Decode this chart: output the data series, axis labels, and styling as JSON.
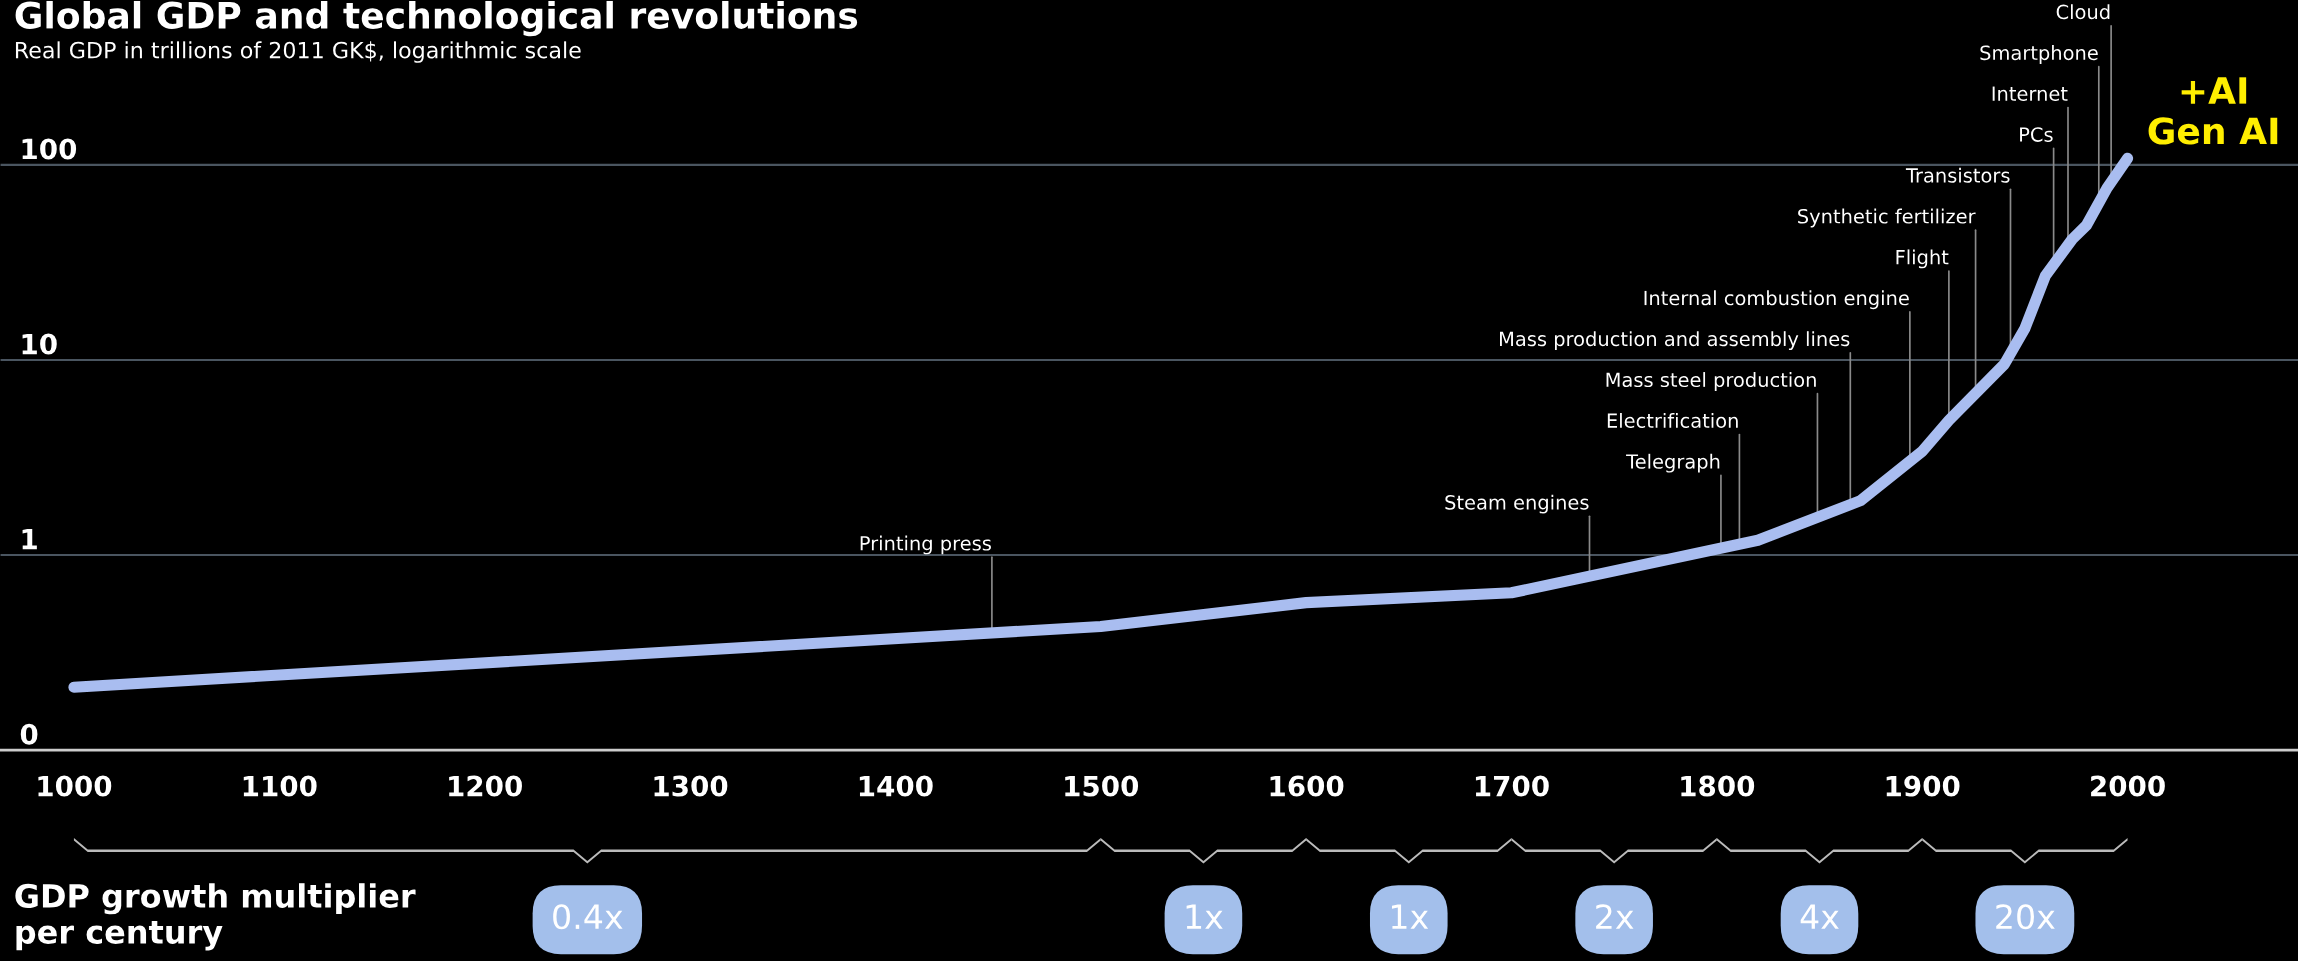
{
  "chart_data": {
    "type": "line",
    "title": "Global GDP and technological revolutions",
    "subtitle": "Real GDP in trillions of 2011 GK$, logarithmic scale",
    "x": [
      1000,
      1500,
      1600,
      1700,
      1820,
      1870,
      1900,
      1913,
      1940,
      1950,
      1960,
      1973,
      1980,
      1990,
      2000
    ],
    "series": [
      {
        "color": "#a9bdf0",
        "values": [
          0.21,
          0.43,
          0.57,
          0.64,
          1.19,
          1.9,
          3.4,
          4.9,
          9.5,
          14.5,
          27,
          41.5,
          49,
          76,
          108
        ]
      }
    ],
    "log": "y",
    "xlim": [
      964,
      2083
    ],
    "xticks": [
      1000,
      1100,
      1200,
      1300,
      1400,
      1500,
      1600,
      1700,
      1800,
      1900,
      2000
    ],
    "ylim": [
      0.1,
      700
    ],
    "yticks": [
      {
        "value": 0.1,
        "label": "0"
      },
      1,
      10,
      100
    ],
    "grid": "y",
    "marker": "none",
    "line_style": "solid",
    "annotations": [
      {
        "text": "Printing press",
        "x": 1447,
        "y": 0.4
      },
      {
        "text": "Steam engines",
        "x": 1738,
        "y": 0.78
      },
      {
        "text": "Telegraph",
        "x": 1802,
        "y": 1.08
      },
      {
        "text": "Electrification",
        "x": 1811,
        "y": 1.14
      },
      {
        "text": "Mass steel production",
        "x": 1849,
        "y": 1.56
      },
      {
        "text": "Mass production and assembly lines",
        "x": 1865,
        "y": 1.8
      },
      {
        "text": "Internal combustion engine",
        "x": 1894,
        "y": 3.0
      },
      {
        "text": "Flight",
        "x": 1913,
        "y": 4.9
      },
      {
        "text": "Synthetic fertilizer",
        "x": 1926,
        "y": 6.7
      },
      {
        "text": "Transistors",
        "x": 1943,
        "y": 10.8
      },
      {
        "text": "PCs",
        "x": 1964,
        "y": 31
      },
      {
        "text": "Internet",
        "x": 1971,
        "y": 39
      },
      {
        "text": "Smartphone",
        "x": 1986,
        "y": 63
      },
      {
        "text": "Cloud",
        "x": 1992,
        "y": 81
      },
      "+AI\nGen AI",
      "GDP growth multiplier\nper century",
      "0.4x",
      "1x",
      "1x",
      "2x",
      "4x",
      "20x"
    ]
  }
}
